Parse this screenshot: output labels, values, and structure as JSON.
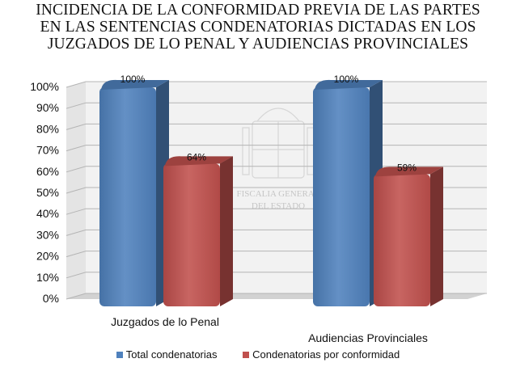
{
  "title_lines": [
    "INCIDENCIA DE LA CONFORMIDAD PREVIA DE LAS PARTES",
    "EN LAS SENTENCIAS CONDENATORIAS DICTADAS EN LOS",
    "JUZGADOS DE LO PENAL Y AUDIENCIAS PROVINCIALES"
  ],
  "watermark_text": [
    "FISCALIA GENERAL",
    "DEL ESTADO"
  ],
  "chart_data": {
    "type": "bar",
    "style": "3d-clustered-column",
    "categories": [
      "Juzgados de lo Penal",
      "Audiencias Provinciales"
    ],
    "series": [
      {
        "name": "Total condenatorias",
        "values": [
          100,
          100
        ],
        "labels": [
          "100%",
          "100%"
        ],
        "color": "#4f81bd"
      },
      {
        "name": "Condenatorias por conformidad",
        "values": [
          64,
          59
        ],
        "labels": [
          "64%",
          "59%"
        ],
        "color": "#c0504d"
      }
    ],
    "ylim": [
      0,
      100
    ],
    "y_ticks": [
      "0%",
      "10%",
      "20%",
      "30%",
      "40%",
      "50%",
      "60%",
      "70%",
      "80%",
      "90%",
      "100%"
    ],
    "grid": true,
    "legend": "bottom"
  }
}
